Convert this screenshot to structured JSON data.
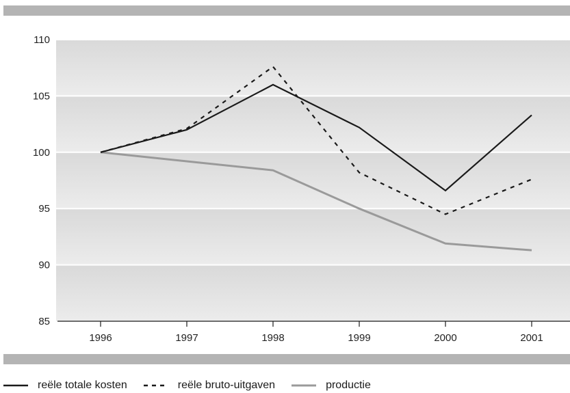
{
  "chart_data": {
    "type": "line",
    "title": "",
    "xlabel": "",
    "ylabel": "",
    "x": [
      "1996",
      "1997",
      "1998",
      "1999",
      "2000",
      "2001"
    ],
    "ylim": [
      85,
      110
    ],
    "yticks": [
      85,
      90,
      95,
      100,
      105,
      110
    ],
    "grid": true,
    "legend_position": "bottom",
    "series": [
      {
        "name": "reële totale kosten",
        "values": [
          100,
          102,
          106,
          102.2,
          96.6,
          103.3
        ],
        "color": "#1a1a1a",
        "style": "solid"
      },
      {
        "name": "reële bruto-uitgaven",
        "values": [
          100,
          102.1,
          107.6,
          98.2,
          94.5,
          97.6
        ],
        "color": "#1a1a1a",
        "style": "dashed"
      },
      {
        "name": "productie",
        "values": [
          100,
          99.2,
          98.4,
          95.0,
          91.9,
          91.3
        ],
        "color": "#9a9a9a",
        "style": "solid"
      }
    ]
  }
}
